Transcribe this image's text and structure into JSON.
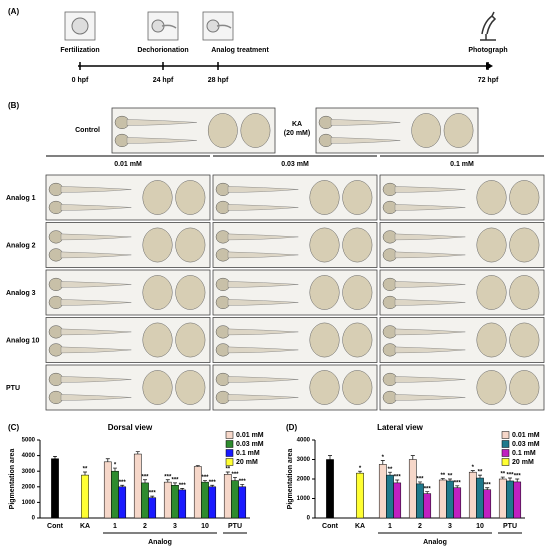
{
  "panel_a": {
    "label": "(A)",
    "events": [
      {
        "label": "Fertilization",
        "time": "0 hpf"
      },
      {
        "label": "Dechorionation",
        "time": "24 hpf"
      },
      {
        "label": "Analog treatment",
        "time": "28 hpf"
      },
      {
        "label": "Photograph",
        "time": "72 hpf"
      }
    ]
  },
  "panel_b": {
    "label": "(B)",
    "control": "Control",
    "ka": [
      "KA",
      "(20 mM)"
    ],
    "concentrations": [
      "0.01 mM",
      "0.03 mM",
      "0.1 mM"
    ],
    "rows": [
      "Analog 1",
      "Analog 2",
      "Analog 3",
      "Analog 10",
      "PTU"
    ]
  },
  "chart_data": [
    {
      "type": "bar",
      "panel": "(C)",
      "title": "Dorsal view",
      "y_label": "Pigmentation area",
      "group_label": "Analog",
      "categories": [
        "Cont",
        "KA",
        "1",
        "2",
        "3",
        "10",
        "PTU"
      ],
      "ylim": [
        0,
        5000
      ],
      "yticks": [
        0,
        1000,
        2000,
        3000,
        4000,
        5000
      ],
      "legend": "upper right",
      "series": [
        {
          "color": "#000000",
          "values": [
            3800,
            null,
            null,
            null,
            null,
            null,
            null
          ],
          "errors": [
            150,
            null,
            null,
            null,
            null,
            null,
            null
          ],
          "annotations": [
            null,
            null,
            null,
            null,
            null,
            null,
            null
          ]
        },
        {
          "name": "0.01 mM",
          "color": "#f6d7c9",
          "values": [
            null,
            null,
            3600,
            4100,
            2300,
            3300,
            2800
          ],
          "errors": [
            null,
            null,
            200,
            150,
            150,
            60,
            150
          ],
          "annotations": [
            null,
            null,
            null,
            null,
            "***",
            null,
            "**"
          ]
        },
        {
          "name": "0.03 mM",
          "color": "#2e8b2e",
          "values": [
            null,
            null,
            3000,
            2250,
            2100,
            2300,
            2400
          ],
          "errors": [
            null,
            null,
            200,
            200,
            150,
            100,
            200
          ],
          "annotations": [
            null,
            null,
            "*",
            "***",
            "***",
            "***",
            "***"
          ]
        },
        {
          "name": "0.1 mM",
          "color": "#1a1aff",
          "values": [
            null,
            null,
            2000,
            1300,
            1800,
            2000,
            2000
          ],
          "errors": [
            null,
            null,
            100,
            100,
            100,
            100,
            150
          ],
          "annotations": [
            null,
            null,
            "***",
            "***",
            "***",
            "***",
            "***"
          ]
        },
        {
          "name": "20 mM",
          "color": "#ffff33",
          "values": [
            null,
            2750,
            null,
            null,
            null,
            null,
            null
          ],
          "errors": [
            null,
            200,
            null,
            null,
            null,
            null,
            null
          ],
          "annotations": [
            null,
            "**",
            null,
            null,
            null,
            null,
            null
          ]
        }
      ]
    },
    {
      "type": "bar",
      "panel": "(D)",
      "title": "Lateral view",
      "y_label": "Pigmentation area",
      "group_label": "Analog",
      "categories": [
        "Cont",
        "KA",
        "1",
        "2",
        "3",
        "10",
        "PTU"
      ],
      "ylim": [
        0,
        4000
      ],
      "yticks": [
        0,
        1000,
        2000,
        3000,
        4000
      ],
      "legend": "upper right",
      "series": [
        {
          "color": "#000000",
          "values": [
            3000,
            null,
            null,
            null,
            null,
            null,
            null
          ],
          "errors": [
            200,
            null,
            null,
            null,
            null,
            null,
            null
          ],
          "annotations": [
            null,
            null,
            null,
            null,
            null,
            null,
            null
          ]
        },
        {
          "name": "0.01 mM",
          "color": "#f6d7c9",
          "values": [
            null,
            null,
            2750,
            3000,
            1950,
            2350,
            2000
          ],
          "errors": [
            null,
            null,
            200,
            200,
            80,
            80,
            100
          ],
          "annotations": [
            null,
            null,
            "*",
            null,
            "**",
            "*",
            "**"
          ]
        },
        {
          "name": "0.03 mM",
          "color": "#1f7a8c",
          "values": [
            null,
            null,
            2200,
            1750,
            1900,
            2050,
            1900
          ],
          "errors": [
            null,
            null,
            150,
            100,
            100,
            150,
            150
          ],
          "annotations": [
            null,
            null,
            "**",
            "***",
            "**",
            "**",
            "***"
          ]
        },
        {
          "name": "0.1 mM",
          "color": "#c020c0",
          "values": [
            null,
            null,
            1800,
            1250,
            1550,
            1450,
            1850
          ],
          "errors": [
            null,
            null,
            150,
            100,
            100,
            100,
            150
          ],
          "annotations": [
            null,
            null,
            "***",
            "***",
            "***",
            "***",
            "***"
          ]
        },
        {
          "name": "20 mM",
          "color": "#ffff33",
          "values": [
            null,
            2300,
            null,
            null,
            null,
            null,
            null
          ],
          "errors": [
            null,
            100,
            null,
            null,
            null,
            null,
            null
          ],
          "annotations": [
            null,
            "*",
            null,
            null,
            null,
            null,
            null
          ]
        }
      ]
    }
  ]
}
